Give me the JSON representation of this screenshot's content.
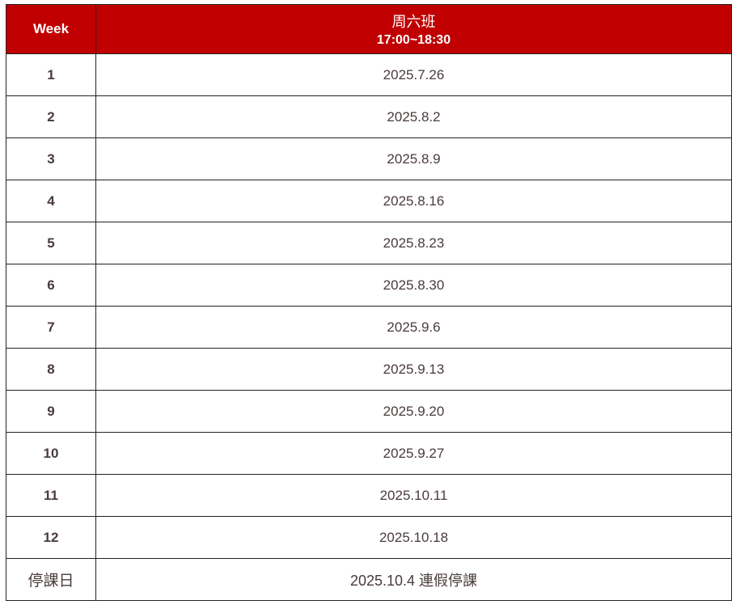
{
  "header": {
    "week": "Week",
    "class_name": "周六班",
    "time": "17:00~18:30"
  },
  "rows": [
    {
      "week": "1",
      "date": "2025.7.26"
    },
    {
      "week": "2",
      "date": "2025.8.2"
    },
    {
      "week": "3",
      "date": "2025.8.9"
    },
    {
      "week": "4",
      "date": "2025.8.16"
    },
    {
      "week": "5",
      "date": "2025.8.23"
    },
    {
      "week": "6",
      "date": "2025.8.30"
    },
    {
      "week": "7",
      "date": "2025.9.6"
    },
    {
      "week": "8",
      "date": "2025.9.13"
    },
    {
      "week": "9",
      "date": "2025.9.20"
    },
    {
      "week": "10",
      "date": "2025.9.27"
    },
    {
      "week": "11",
      "date": "2025.10.11"
    },
    {
      "week": "12",
      "date": "2025.10.18"
    }
  ],
  "holiday": {
    "label": "停課日",
    "value": "2025.10.4 連假停課"
  },
  "colors": {
    "header_bg": "#c00000",
    "text": "#4a3b3b"
  }
}
